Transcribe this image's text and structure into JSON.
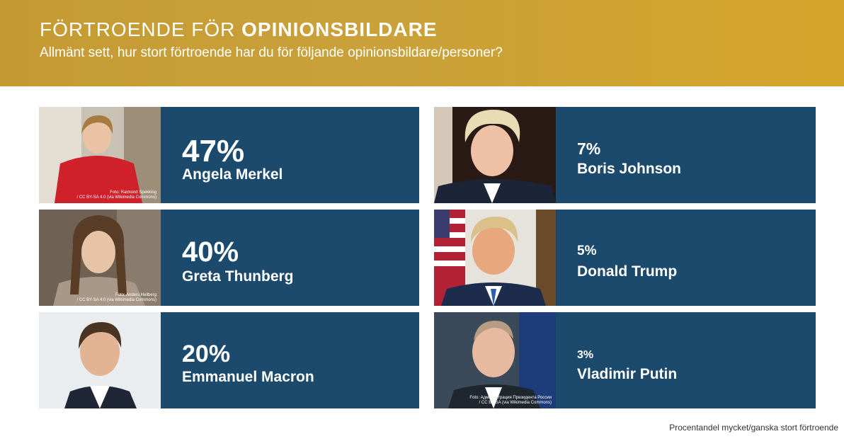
{
  "header": {
    "title_light": "FÖRTROENDE FÖR ",
    "title_bold": "OPINIONSBILDARE",
    "subtitle": "Allmänt sett, hur stort förtroende har du för följande opinionsbildare/personer?"
  },
  "chart_data": {
    "type": "table",
    "unit": "%",
    "categories": [
      "Angela Merkel",
      "Greta Thunberg",
      "Emmanuel Macron",
      "Boris Johnson",
      "Donald Trump",
      "Vladimir Putin"
    ],
    "values": [
      47,
      40,
      20,
      7,
      5,
      3
    ]
  },
  "cards": [
    {
      "pct": "47%",
      "name": "Angela Merkel",
      "credit1": "Foto: Raimond Spekking",
      "credit2": "/ CC BY-SA 4.0 (via Wikimedia Commons)"
    },
    {
      "pct": "40%",
      "name": "Greta Thunberg",
      "credit1": "Foto: Anders Hellberg",
      "credit2": "/ CC BY-SA 4.0 (via Wikimedia Commons)"
    },
    {
      "pct": "20%",
      "name": "Emmanuel Macron",
      "credit1": "",
      "credit2": ""
    },
    {
      "pct": "7%",
      "name": "Boris Johnson",
      "credit1": "",
      "credit2": ""
    },
    {
      "pct": "5%",
      "name": "Donald Trump",
      "credit1": "",
      "credit2": ""
    },
    {
      "pct": "3%",
      "name": "Vladimir Putin",
      "credit1": "Foto: Администрация Президента России",
      "credit2": "/ CC BY-SA (via Wikimedia Commons)"
    }
  ],
  "footnote": "Procentandel mycket/ganska stort förtroende",
  "colors": {
    "banner": "#c59a33",
    "card": "#1c4a6c",
    "text": "#ffffff"
  }
}
